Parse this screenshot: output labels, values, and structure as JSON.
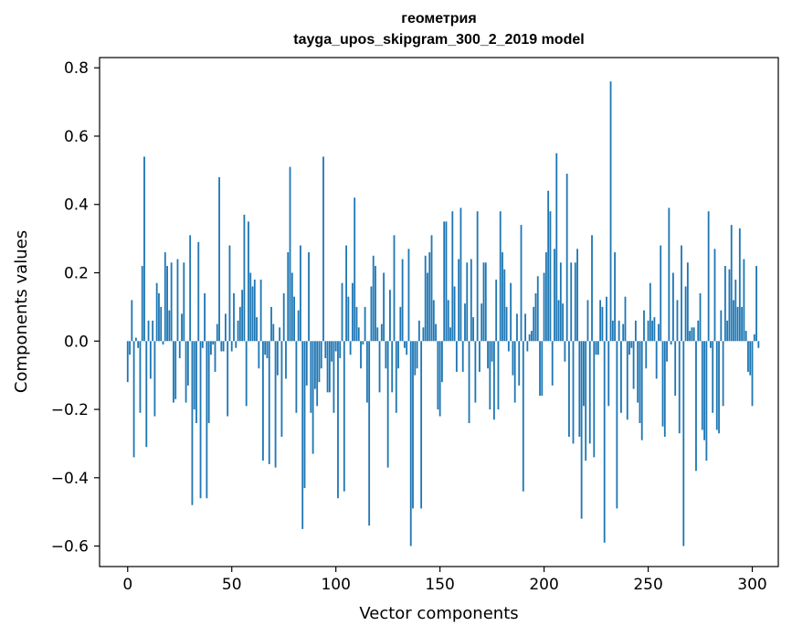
{
  "chart_data": {
    "type": "bar",
    "title_lines": [
      "геометрия",
      "tayga_upos_skipgram_300_2_2019 model"
    ],
    "xlabel": "Vector components",
    "ylabel": "Components values",
    "xlim": [
      -13.5,
      312.5
    ],
    "ylim": [
      -0.66,
      0.83
    ],
    "xticks": [
      0,
      50,
      100,
      150,
      200,
      250,
      300
    ],
    "xtick_labels": [
      "0",
      "50",
      "100",
      "150",
      "200",
      "250",
      "300"
    ],
    "yticks": [
      -0.6,
      -0.4,
      -0.2,
      0.0,
      0.2,
      0.4,
      0.6,
      0.8
    ],
    "ytick_labels": [
      "−0.6",
      "−0.4",
      "−0.2",
      "0.0",
      "0.2",
      "0.4",
      "0.6",
      "0.8"
    ],
    "bar_color": "#1f77b4",
    "grid": false,
    "legend": "none",
    "values": [
      -0.12,
      -0.04,
      0.12,
      -0.34,
      0.01,
      -0.02,
      -0.21,
      0.22,
      0.54,
      -0.31,
      0.06,
      -0.11,
      0.06,
      -0.22,
      0.17,
      0.14,
      0.1,
      -0.01,
      0.26,
      0.22,
      0.09,
      0.23,
      -0.18,
      -0.17,
      0.24,
      -0.05,
      0.08,
      0.23,
      -0.18,
      -0.13,
      0.31,
      -0.48,
      -0.2,
      -0.24,
      0.29,
      -0.46,
      -0.02,
      0.14,
      -0.46,
      -0.24,
      -0.04,
      -0.01,
      -0.09,
      0.05,
      0.48,
      -0.03,
      -0.03,
      0.08,
      -0.22,
      0.28,
      -0.03,
      0.14,
      -0.02,
      0.06,
      0.1,
      0.15,
      0.37,
      -0.19,
      0.35,
      0.2,
      0.16,
      0.18,
      0.07,
      -0.08,
      0.18,
      -0.35,
      -0.04,
      -0.05,
      -0.36,
      0.1,
      0.05,
      -0.37,
      -0.1,
      0.04,
      -0.28,
      0.14,
      -0.11,
      0.26,
      0.51,
      0.2,
      0.13,
      -0.21,
      0.09,
      0.28,
      -0.55,
      -0.43,
      -0.13,
      0.26,
      -0.21,
      -0.33,
      -0.14,
      -0.19,
      -0.12,
      -0.08,
      0.54,
      -0.05,
      -0.15,
      -0.15,
      -0.06,
      -0.21,
      -0.03,
      -0.46,
      -0.05,
      0.17,
      -0.44,
      0.28,
      0.13,
      -0.04,
      0.17,
      0.42,
      0.1,
      0.04,
      -0.08,
      -0.01,
      0.1,
      -0.18,
      -0.54,
      0.16,
      0.25,
      0.22,
      0.04,
      -0.15,
      0.05,
      0.2,
      -0.08,
      -0.37,
      0.15,
      -0.15,
      0.31,
      -0.21,
      -0.08,
      0.1,
      0.24,
      -0.02,
      -0.04,
      0.27,
      -0.6,
      -0.49,
      -0.1,
      -0.08,
      0.06,
      -0.49,
      0.04,
      0.25,
      0.2,
      0.26,
      0.31,
      0.12,
      0.05,
      -0.2,
      -0.22,
      -0.12,
      0.35,
      0.35,
      0.12,
      0.04,
      0.38,
      0.16,
      -0.09,
      0.24,
      0.39,
      -0.09,
      0.11,
      0.23,
      -0.24,
      0.24,
      0.07,
      -0.18,
      0.38,
      -0.09,
      0.11,
      0.23,
      0.23,
      -0.08,
      -0.2,
      -0.06,
      -0.23,
      0.18,
      -0.2,
      0.38,
      0.26,
      0.21,
      0.1,
      -0.03,
      0.17,
      -0.1,
      -0.18,
      0.08,
      -0.13,
      0.34,
      -0.44,
      0.08,
      -0.03,
      0.02,
      0.03,
      0.1,
      0.14,
      0.19,
      -0.16,
      -0.16,
      0.2,
      0.26,
      0.44,
      0.38,
      -0.13,
      0.27,
      0.55,
      0.12,
      0.23,
      0.11,
      -0.06,
      0.49,
      -0.28,
      0.23,
      -0.3,
      0.23,
      0.27,
      -0.28,
      -0.52,
      -0.19,
      -0.35,
      0.12,
      -0.3,
      0.31,
      -0.34,
      -0.04,
      -0.04,
      0.12,
      0.1,
      -0.59,
      0.13,
      -0.19,
      0.76,
      0.06,
      0.26,
      -0.49,
      0.06,
      -0.21,
      0.05,
      0.13,
      -0.23,
      -0.04,
      -0.02,
      -0.14,
      0.06,
      -0.18,
      -0.24,
      -0.29,
      0.09,
      -0.08,
      0.06,
      0.17,
      0.06,
      0.07,
      -0.11,
      0.05,
      0.28,
      -0.25,
      -0.28,
      -0.06,
      0.39,
      -0.01,
      0.2,
      -0.16,
      0.12,
      -0.27,
      0.28,
      -0.6,
      0.16,
      0.23,
      0.03,
      0.04,
      0.04,
      -0.38,
      0.06,
      0.14,
      -0.26,
      -0.29,
      -0.35,
      0.38,
      -0.02,
      -0.21,
      0.27,
      -0.26,
      -0.27,
      0.09,
      -0.19,
      0.22,
      0.06,
      0.21,
      0.34,
      0.12,
      0.18,
      0.1,
      0.33,
      0.1,
      0.24,
      0.03,
      -0.09,
      -0.1,
      -0.19,
      0.02,
      0.22,
      -0.02
    ]
  }
}
